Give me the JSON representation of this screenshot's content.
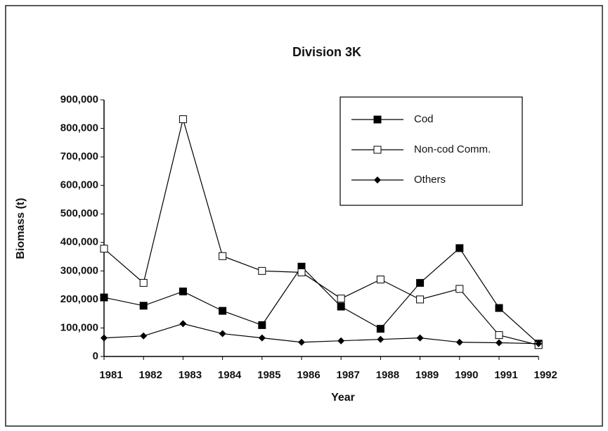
{
  "chart_data": {
    "type": "line",
    "title": "Division 3K",
    "xlabel": "Year",
    "ylabel": "Biomass (t)",
    "categories": [
      "1981",
      "1982",
      "1983",
      "1984",
      "1985",
      "1986",
      "1987",
      "1988",
      "1989",
      "1990",
      "1991",
      "1992"
    ],
    "series": [
      {
        "name": "Cod",
        "color": "#000000",
        "marker": "square-filled",
        "values": [
          207000,
          178000,
          228000,
          160000,
          110000,
          315000,
          175000,
          97000,
          258000,
          380000,
          170000,
          45000
        ]
      },
      {
        "name": "Non-cod Comm.",
        "color": "#000000",
        "marker": "square-open",
        "values": [
          378000,
          258000,
          832000,
          352000,
          300000,
          295000,
          203000,
          270000,
          200000,
          237000,
          75000,
          40000
        ]
      },
      {
        "name": "Others",
        "color": "#000000",
        "marker": "diamond",
        "values": [
          65000,
          72000,
          115000,
          80000,
          65000,
          50000,
          55000,
          60000,
          65000,
          50000,
          48000,
          45000
        ]
      }
    ],
    "ylim": [
      0,
      900000
    ],
    "yticks": [
      0,
      {
        "value": 100000,
        "label": "100,000"
      },
      {
        "value": 200000,
        "label": "200,000"
      },
      {
        "value": 300000,
        "label": "300,000"
      },
      {
        "value": 400000,
        "label": "400,000"
      },
      {
        "value": 500000,
        "label": "500,000"
      },
      {
        "value": 600000,
        "label": "600,000"
      },
      {
        "value": 700000,
        "label": "700,000"
      },
      {
        "value": 800000,
        "label": "800,000"
      },
      {
        "value": 900000,
        "label": "900,000"
      }
    ],
    "legend": "upper right",
    "grid": false
  }
}
